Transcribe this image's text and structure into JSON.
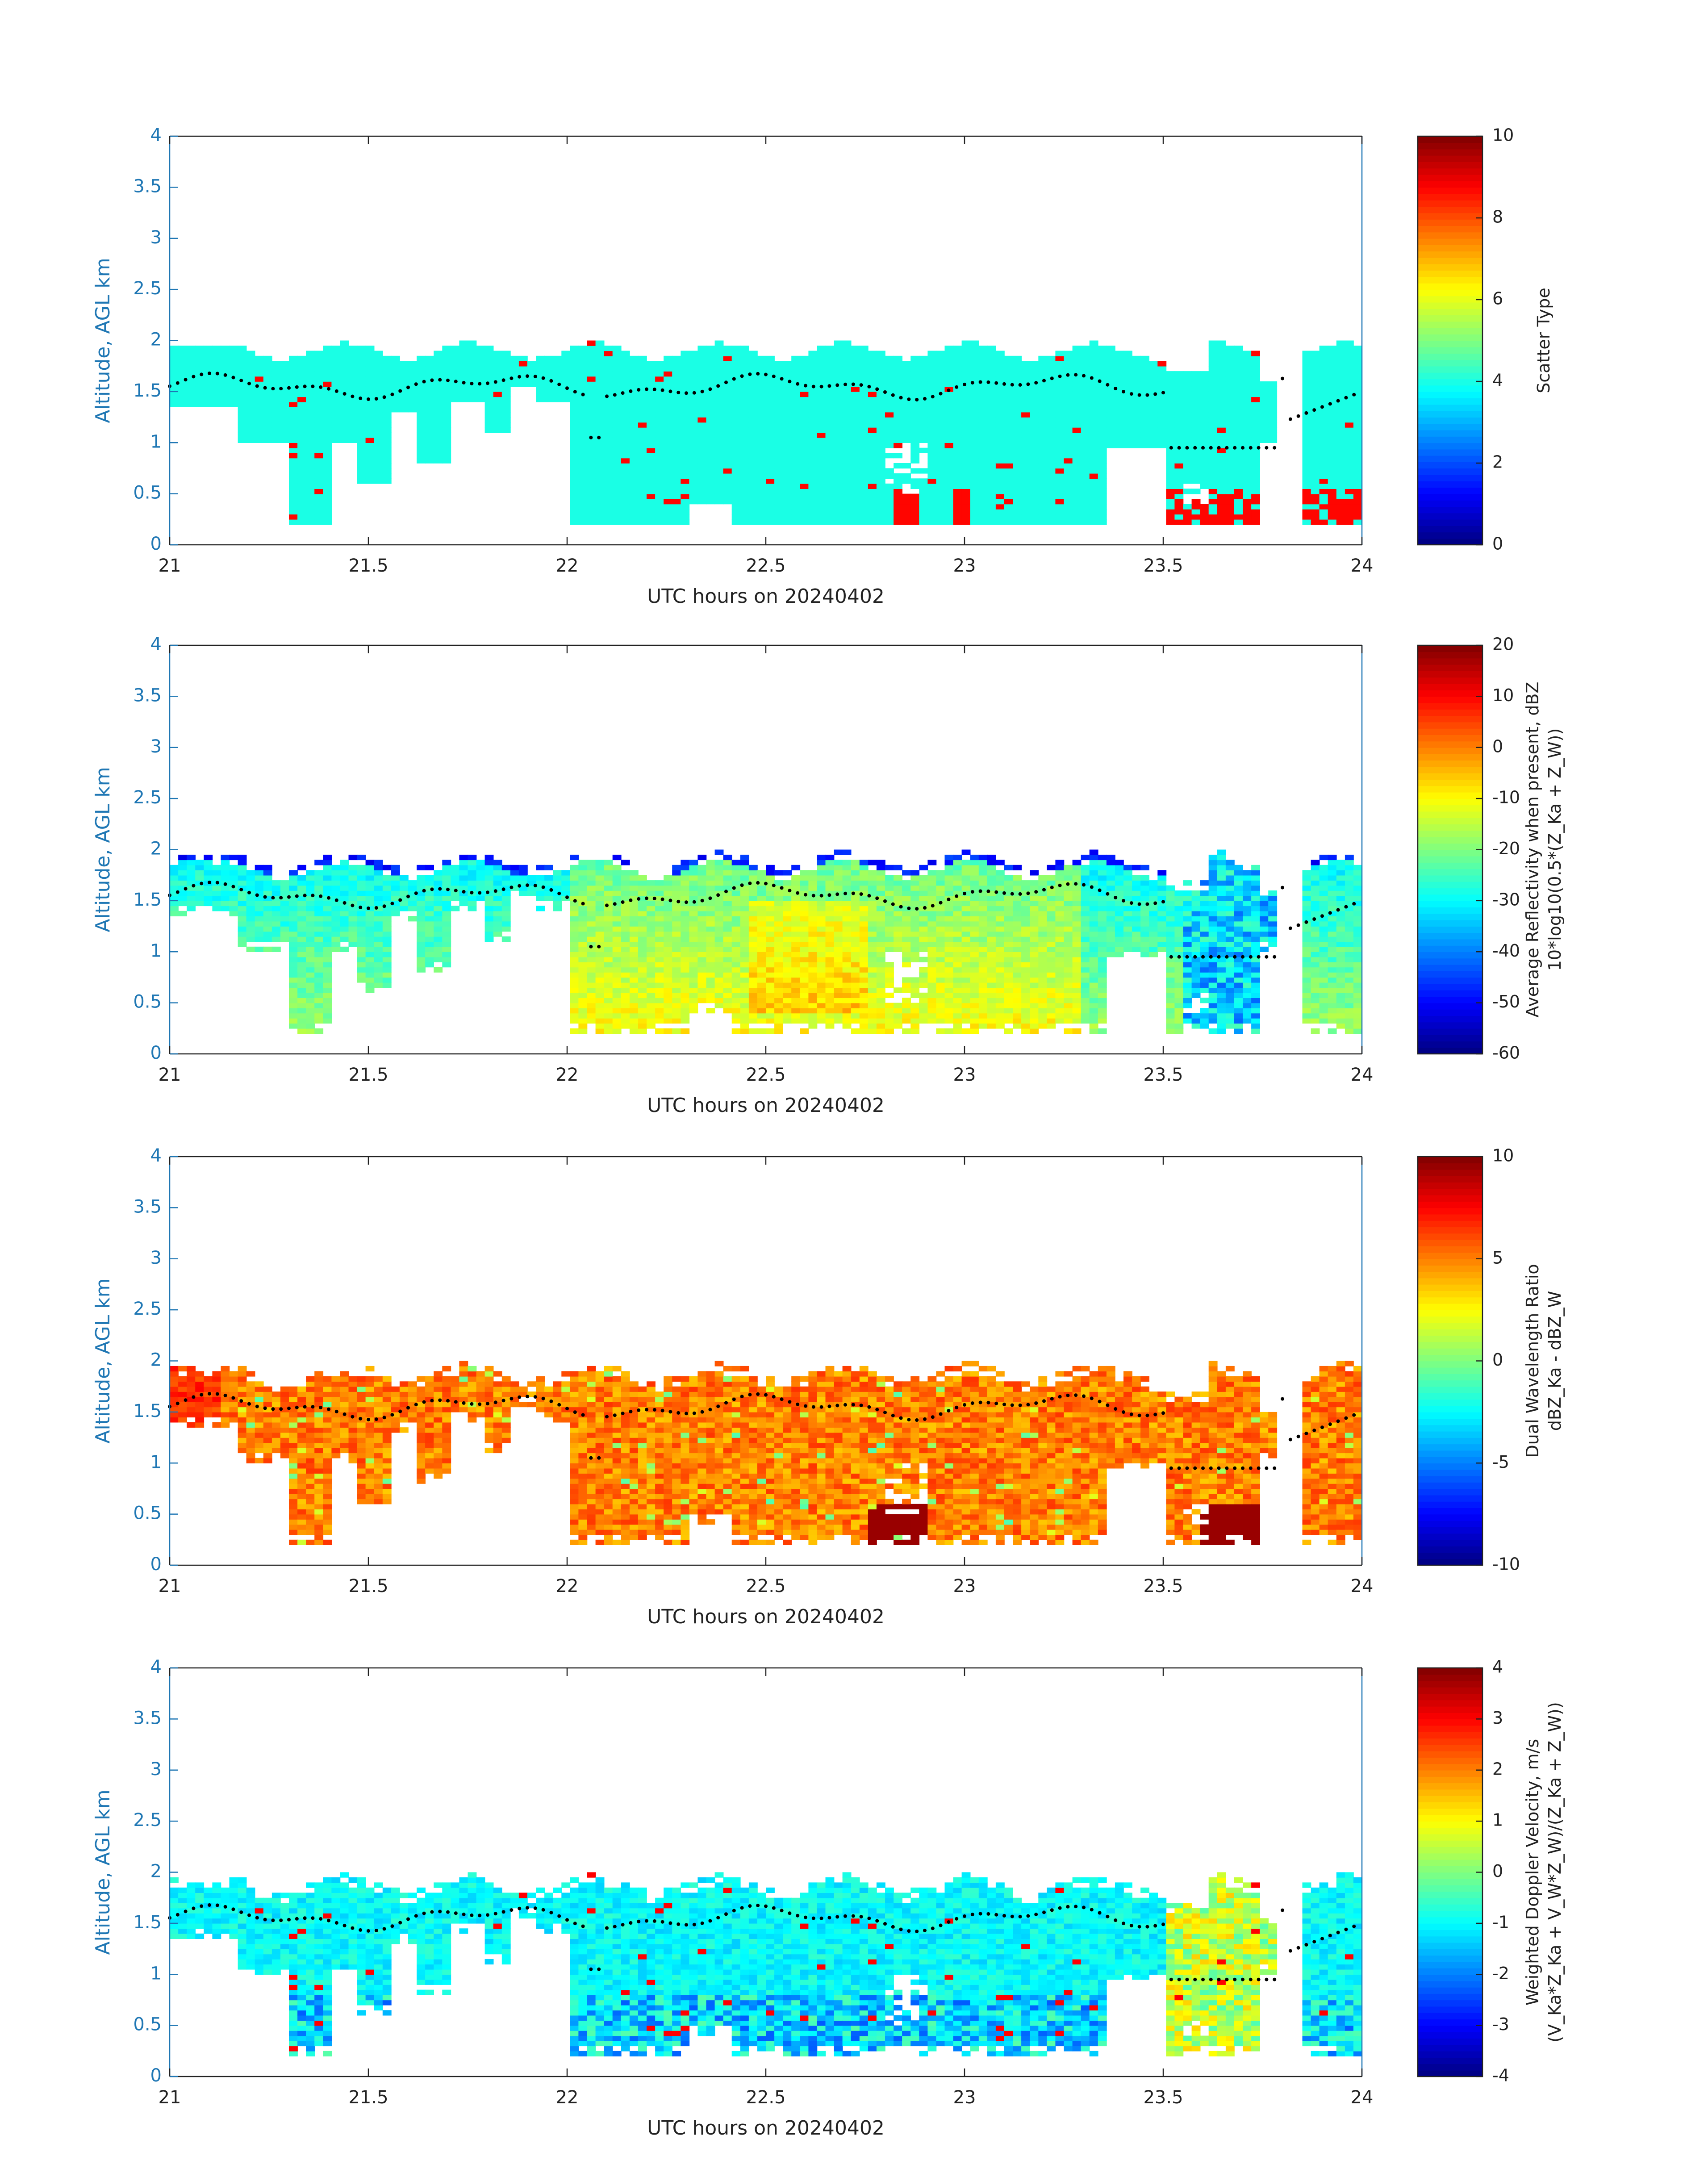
{
  "chart_data": [
    {
      "type": "heatmap",
      "xlabel": "UTC hours on 20240402",
      "ylabel": "Altitude, AGL km",
      "xlim": [
        21,
        24
      ],
      "ylim": [
        0,
        4
      ],
      "x_ticks": [
        "21",
        "21.5",
        "22",
        "22.5",
        "23",
        "23.5",
        "24"
      ],
      "y_ticks": [
        "0",
        "0.5",
        "1",
        "1.5",
        "2",
        "2.5",
        "3",
        "3.5",
        "4"
      ],
      "colorbar": {
        "label_lines": [
          "Scatter Type"
        ],
        "min": 0,
        "max": 10,
        "ticks": [
          "0",
          "2",
          "4",
          "6",
          "8",
          "10"
        ],
        "colormap": "jet"
      },
      "field": "scatter_type"
    },
    {
      "type": "heatmap",
      "xlabel": "UTC hours on 20240402",
      "ylabel": "Altitude, AGL km",
      "xlim": [
        21,
        24
      ],
      "ylim": [
        0,
        4
      ],
      "x_ticks": [
        "21",
        "21.5",
        "22",
        "22.5",
        "23",
        "23.5",
        "24"
      ],
      "y_ticks": [
        "0",
        "0.5",
        "1",
        "1.5",
        "2",
        "2.5",
        "3",
        "3.5",
        "4"
      ],
      "colorbar": {
        "label_lines": [
          "Average Reflectivity when present, dBZ",
          "10*log10(0.5*(Z_Ka + Z_W))"
        ],
        "min": -60,
        "max": 20,
        "ticks": [
          "-60",
          "-50",
          "-40",
          "-30",
          "-20",
          "-10",
          "0",
          "10",
          "20"
        ],
        "colormap": "jet"
      },
      "field": "reflectivity"
    },
    {
      "type": "heatmap",
      "xlabel": "UTC hours on 20240402",
      "ylabel": "Altitude, AGL km",
      "xlim": [
        21,
        24
      ],
      "ylim": [
        0,
        4
      ],
      "x_ticks": [
        "21",
        "21.5",
        "22",
        "22.5",
        "23",
        "23.5",
        "24"
      ],
      "y_ticks": [
        "0",
        "0.5",
        "1",
        "1.5",
        "2",
        "2.5",
        "3",
        "3.5",
        "4"
      ],
      "colorbar": {
        "label_lines": [
          "Dual Wavelength Ratio",
          "dBZ_Ka - dBZ_W"
        ],
        "min": -10,
        "max": 10,
        "ticks": [
          "-10",
          "-5",
          "0",
          "5",
          "10"
        ],
        "colormap": "jet"
      },
      "field": "dwr"
    },
    {
      "type": "heatmap",
      "xlabel": "UTC hours on 20240402",
      "ylabel": "Altitude, AGL km",
      "xlim": [
        21,
        24
      ],
      "ylim": [
        0,
        4
      ],
      "x_ticks": [
        "21",
        "21.5",
        "22",
        "22.5",
        "23",
        "23.5",
        "24"
      ],
      "y_ticks": [
        "0",
        "0.5",
        "1",
        "1.5",
        "2",
        "2.5",
        "3",
        "3.5",
        "4"
      ],
      "colorbar": {
        "label_lines": [
          "Weighted Doppler Velocity, m/s",
          "(V_Ka*Z_Ka + V_W*Z_W)/(Z_Ka + Z_W))"
        ],
        "min": -4,
        "max": 4,
        "ticks": [
          "-4",
          "-3",
          "-2",
          "-1",
          "0",
          "1",
          "2",
          "3",
          "4"
        ],
        "colormap": "jet"
      },
      "field": "doppler_velocity"
    }
  ]
}
